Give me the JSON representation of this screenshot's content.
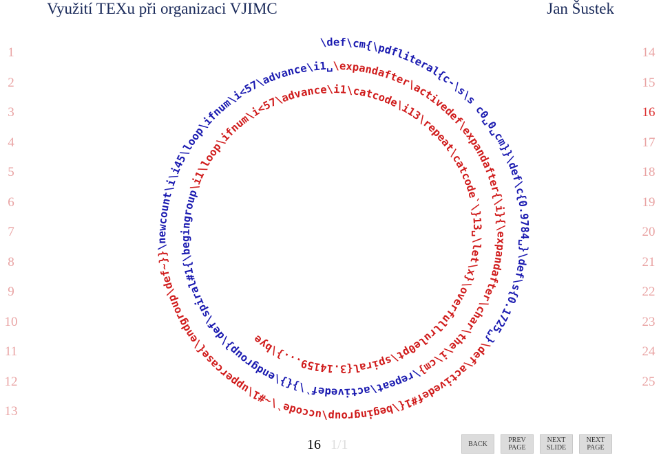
{
  "header": {
    "title": "Využití TEXu při organizaci VJIMC",
    "author": "Jan Šustek"
  },
  "line_numbers": {
    "left": [
      "1",
      "2",
      "3",
      "4",
      "5",
      "6",
      "7",
      "8",
      "9",
      "10",
      "11",
      "12",
      "13"
    ],
    "right": [
      "14",
      "15",
      "16",
      "17",
      "18",
      "19",
      "20",
      "21",
      "22",
      "23",
      "24",
      "25"
    ],
    "current": "16"
  },
  "spiral": {
    "segments": [
      {
        "text": "\\def\\cm{\\pdfliteral{c-\\s\\s c0␣0␣cm}}\\def\\c{0.9784␣}\\def\\s{0.1725␣}",
        "color": "#1a1ab0"
      },
      {
        "text": "\\def\\activedef#1{\\begingroup\\uccode`\\~#1\\uppercase{\\endgroup\\def~}}",
        "color": "#d01c1c"
      },
      {
        "text": "\\newcount\\i\\i45\\loop\\ifnum\\i<57\\advance\\i1␣",
        "color": "#1a1ab0"
      },
      {
        "text": "\\expandafter\\activedef\\expandafter{\\i}{\\expandafter\\char\\the\\i\\cm}",
        "color": "#d01c1c"
      },
      {
        "text": "\\repeat\\activedef`\\}{}\\endgroup}\\def\\spiral#1{\\begingroup",
        "color": "#1a1ab0"
      },
      {
        "text": "\\i1\\loop\\ifnum\\i<57\\advance\\i1\\catcode\\i13\\repeat\\catcode`\\}13␣\\let\\x}\\overfullrule0pt\\spiral{3.14159...}\\bye",
        "color": "#d01c1c"
      }
    ]
  },
  "footer": {
    "page": "16",
    "total": "1/1",
    "buttons": [
      [
        "BACK"
      ],
      [
        "PREV",
        "PAGE"
      ],
      [
        "NEXT",
        "SLIDE"
      ],
      [
        "NEXT",
        "PAGE"
      ]
    ]
  }
}
